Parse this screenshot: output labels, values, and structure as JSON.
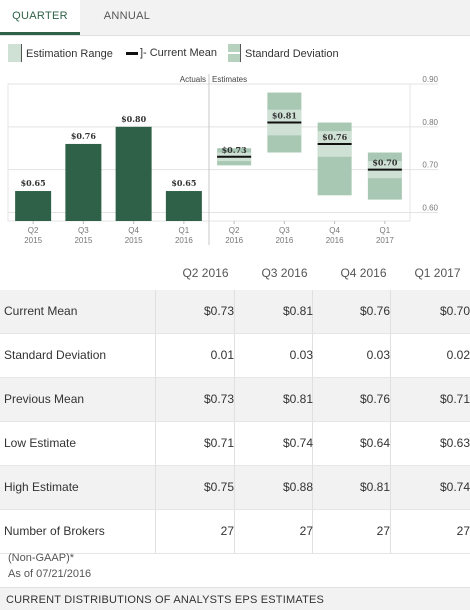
{
  "tabs": [
    {
      "label": "QUARTER",
      "active": true
    },
    {
      "label": "ANNUAL",
      "active": false
    }
  ],
  "legend": {
    "range": "Estimation Range",
    "mean": "Current Mean",
    "sd": "Standard Deviation"
  },
  "colors": {
    "actual_bar": "#2f6048",
    "range_fill": "#a8c8b3",
    "sd_fill": "#cfe0d5",
    "mean_line": "#111111",
    "grid": "#e3e3e3",
    "axis_text": "#777777",
    "accent": "#2f6048"
  },
  "chart_data": {
    "type": "bar",
    "section_labels": {
      "actuals": "Actuals",
      "estimates": "Estimates"
    },
    "ylim": [
      0.6,
      0.9
    ],
    "y_ticks": [
      0.6,
      0.7,
      0.8,
      0.9
    ],
    "y_tick_labels": [
      "0.60",
      "0.70",
      "0.80",
      "0.90"
    ],
    "x_categories": [
      [
        "Q2",
        "2015"
      ],
      [
        "Q3",
        "2015"
      ],
      [
        "Q4",
        "2015"
      ],
      [
        "Q1",
        "2016"
      ],
      [
        "Q2",
        "2016"
      ],
      [
        "Q3",
        "2016"
      ],
      [
        "Q4",
        "2016"
      ],
      [
        "Q1",
        "2017"
      ]
    ],
    "actuals": [
      {
        "period": "Q2 2015",
        "value": 0.65,
        "label": "$0.65"
      },
      {
        "period": "Q3 2015",
        "value": 0.76,
        "label": "$0.76"
      },
      {
        "period": "Q4 2015",
        "value": 0.8,
        "label": "$0.80"
      },
      {
        "period": "Q1 2016",
        "value": 0.65,
        "label": "$0.65"
      }
    ],
    "estimates": [
      {
        "period": "Q2 2016",
        "low": 0.71,
        "high": 0.75,
        "mean": 0.73,
        "sd": 0.01,
        "label": "$0.73"
      },
      {
        "period": "Q3 2016",
        "low": 0.74,
        "high": 0.88,
        "mean": 0.81,
        "sd": 0.03,
        "label": "$0.81"
      },
      {
        "period": "Q4 2016",
        "low": 0.64,
        "high": 0.81,
        "mean": 0.76,
        "sd": 0.03,
        "label": "$0.76"
      },
      {
        "period": "Q1 2017",
        "low": 0.63,
        "high": 0.74,
        "mean": 0.7,
        "sd": 0.02,
        "label": "$0.70"
      }
    ]
  },
  "table": {
    "columns": [
      "Q2 2016",
      "Q3 2016",
      "Q4 2016",
      "Q1 2017"
    ],
    "rows": [
      {
        "label": "Current Mean",
        "values": [
          "$0.73",
          "$0.81",
          "$0.76",
          "$0.70"
        ]
      },
      {
        "label": "Standard Deviation",
        "values": [
          "0.01",
          "0.03",
          "0.03",
          "0.02"
        ]
      },
      {
        "label": "Previous Mean",
        "values": [
          "$0.73",
          "$0.81",
          "$0.76",
          "$0.71"
        ]
      },
      {
        "label": "Low Estimate",
        "values": [
          "$0.71",
          "$0.74",
          "$0.64",
          "$0.63"
        ]
      },
      {
        "label": "High Estimate",
        "values": [
          "$0.75",
          "$0.88",
          "$0.81",
          "$0.74"
        ]
      },
      {
        "label": "Number of Brokers",
        "values": [
          "27",
          "27",
          "27",
          "27"
        ]
      }
    ]
  },
  "notes": {
    "gaap": "(Non-GAAP)*",
    "as_of": "As of 07/21/2016"
  },
  "footer": {
    "section_title": "CURRENT DISTRIBUTIONS OF ANALYSTS EPS ESTIMATES"
  }
}
